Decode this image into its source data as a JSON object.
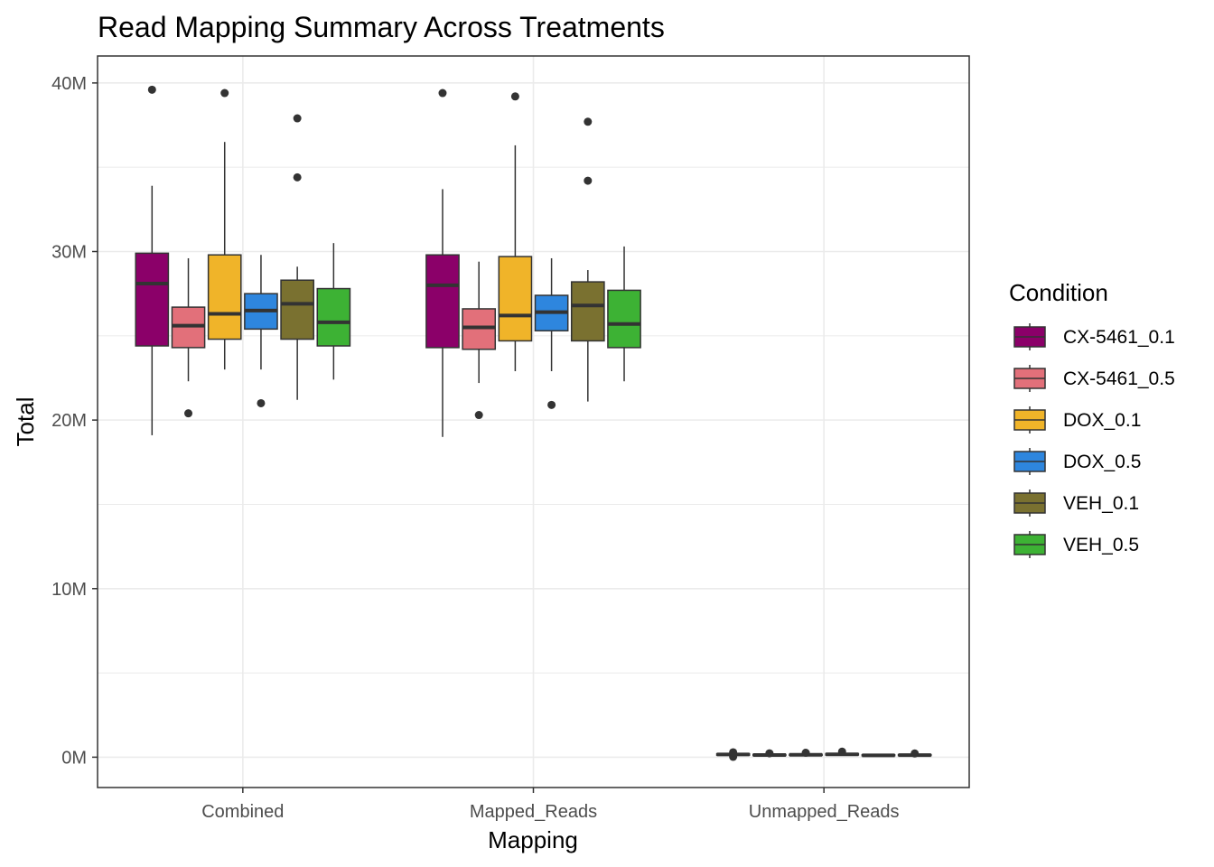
{
  "chart_data": {
    "type": "boxplot",
    "title": "Read Mapping Summary Across Treatments",
    "xlabel": "Mapping",
    "ylabel": "Total",
    "ylim": [
      -1800000,
      41600000
    ],
    "y_ticks": [
      0,
      10000000,
      20000000,
      30000000,
      40000000
    ],
    "y_tick_labels": [
      "0M",
      "10M",
      "20M",
      "30M",
      "40M"
    ],
    "categories": [
      "Combined",
      "Mapped_Reads",
      "Unmapped_Reads"
    ],
    "grid": true,
    "legend": {
      "title": "Condition",
      "position": "right"
    },
    "series": [
      {
        "name": "CX-5461_0.1",
        "color": "#8B0069",
        "boxes": [
          {
            "whisker_low": 19100000,
            "q1": 24400000,
            "median": 28100000,
            "q3": 29900000,
            "whisker_high": 33900000,
            "outliers": [
              39600000
            ]
          },
          {
            "whisker_low": 19000000,
            "q1": 24300000,
            "median": 28000000,
            "q3": 29800000,
            "whisker_high": 33700000,
            "outliers": [
              39400000
            ]
          },
          {
            "whisker_low": 50000,
            "q1": 120000,
            "median": 160000,
            "q3": 200000,
            "whisker_high": 260000,
            "outliers": [
              20000,
              290000
            ]
          }
        ]
      },
      {
        "name": "CX-5461_0.5",
        "color": "#E2707A",
        "boxes": [
          {
            "whisker_low": 22300000,
            "q1": 24300000,
            "median": 25600000,
            "q3": 26700000,
            "whisker_high": 29600000,
            "outliers": [
              20400000
            ]
          },
          {
            "whisker_low": 22200000,
            "q1": 24200000,
            "median": 25500000,
            "q3": 26600000,
            "whisker_high": 29400000,
            "outliers": [
              20300000
            ]
          },
          {
            "whisker_low": 60000,
            "q1": 100000,
            "median": 130000,
            "q3": 160000,
            "whisker_high": 200000,
            "outliers": [
              230000
            ]
          }
        ]
      },
      {
        "name": "DOX_0.1",
        "color": "#F0B429",
        "boxes": [
          {
            "whisker_low": 23000000,
            "q1": 24800000,
            "median": 26300000,
            "q3": 29800000,
            "whisker_high": 36500000,
            "outliers": [
              39400000
            ]
          },
          {
            "whisker_low": 22900000,
            "q1": 24700000,
            "median": 26200000,
            "q3": 29700000,
            "whisker_high": 36300000,
            "outliers": [
              39200000
            ]
          },
          {
            "whisker_low": 70000,
            "q1": 110000,
            "median": 140000,
            "q3": 170000,
            "whisker_high": 220000,
            "outliers": [
              260000
            ]
          }
        ]
      },
      {
        "name": "DOX_0.5",
        "color": "#2E86DE",
        "boxes": [
          {
            "whisker_low": 23000000,
            "q1": 25400000,
            "median": 26500000,
            "q3": 27500000,
            "whisker_high": 29800000,
            "outliers": [
              21000000
            ]
          },
          {
            "whisker_low": 22900000,
            "q1": 25300000,
            "median": 26400000,
            "q3": 27400000,
            "whisker_high": 29600000,
            "outliers": [
              20900000
            ]
          },
          {
            "whisker_low": 90000,
            "q1": 130000,
            "median": 170000,
            "q3": 210000,
            "whisker_high": 260000,
            "outliers": [
              330000
            ]
          }
        ]
      },
      {
        "name": "VEH_0.1",
        "color": "#7A7130",
        "boxes": [
          {
            "whisker_low": 21200000,
            "q1": 24800000,
            "median": 26900000,
            "q3": 28300000,
            "whisker_high": 29100000,
            "outliers": [
              34400000,
              37900000
            ]
          },
          {
            "whisker_low": 21100000,
            "q1": 24700000,
            "median": 26800000,
            "q3": 28200000,
            "whisker_high": 28900000,
            "outliers": [
              34200000,
              37700000
            ]
          },
          {
            "whisker_low": 60000,
            "q1": 90000,
            "median": 110000,
            "q3": 140000,
            "whisker_high": 170000,
            "outliers": []
          }
        ]
      },
      {
        "name": "VEH_0.5",
        "color": "#3DB234",
        "boxes": [
          {
            "whisker_low": 22400000,
            "q1": 24400000,
            "median": 25800000,
            "q3": 27800000,
            "whisker_high": 30500000,
            "outliers": []
          },
          {
            "whisker_low": 22300000,
            "q1": 24300000,
            "median": 25700000,
            "q3": 27700000,
            "whisker_high": 30300000,
            "outliers": []
          },
          {
            "whisker_low": 60000,
            "q1": 100000,
            "median": 120000,
            "q3": 150000,
            "whisker_high": 190000,
            "outliers": [
              220000
            ]
          }
        ]
      }
    ]
  }
}
